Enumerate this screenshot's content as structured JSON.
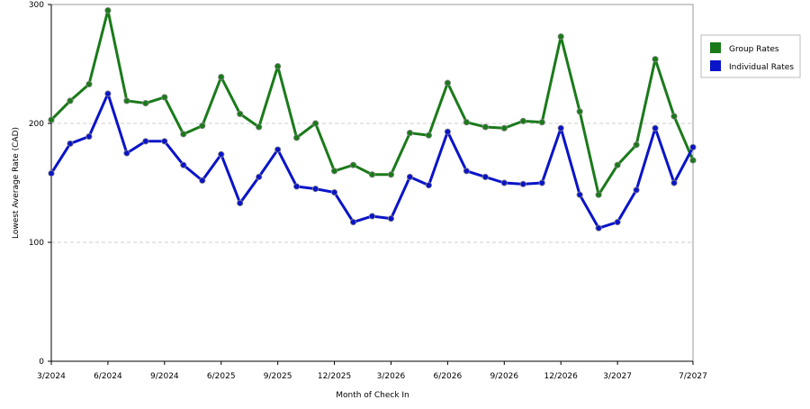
{
  "chart_data": {
    "type": "line",
    "x_label": "Month of Check In",
    "y_label": "Lowest Average Rate (CAD)",
    "categories": [
      "3/2024",
      null,
      null,
      "6/2024",
      null,
      null,
      "9/2024",
      null,
      null,
      "6/2025",
      null,
      null,
      "9/2025",
      null,
      null,
      "12/2025",
      null,
      null,
      "3/2026",
      null,
      null,
      "6/2026",
      null,
      null,
      "9/2026",
      null,
      null,
      "12/2026",
      null,
      null,
      "3/2027",
      null,
      null,
      null,
      "7/2027"
    ],
    "series": [
      {
        "name": "Group Rates",
        "color": "#1a7a1a",
        "values": [
          203,
          219,
          233,
          295,
          219,
          217,
          222,
          191,
          198,
          239,
          208,
          197,
          248,
          188,
          200,
          160,
          165,
          157,
          157,
          192,
          190,
          234,
          201,
          197,
          196,
          202,
          201,
          273,
          210,
          140,
          165,
          182,
          254,
          206,
          169
        ]
      },
      {
        "name": "Individual Rates",
        "color": "#0a14c8",
        "values": [
          158,
          183,
          189,
          225,
          175,
          185,
          185,
          165,
          152,
          174,
          133,
          155,
          178,
          147,
          145,
          142,
          117,
          122,
          120,
          155,
          148,
          193,
          160,
          155,
          150,
          149,
          150,
          196,
          140,
          112,
          117,
          144,
          196,
          150,
          180
        ]
      }
    ],
    "ylim": [
      0,
      300
    ],
    "yticks": [
      0,
      100,
      200,
      300
    ],
    "grid": true,
    "legend": "right"
  }
}
